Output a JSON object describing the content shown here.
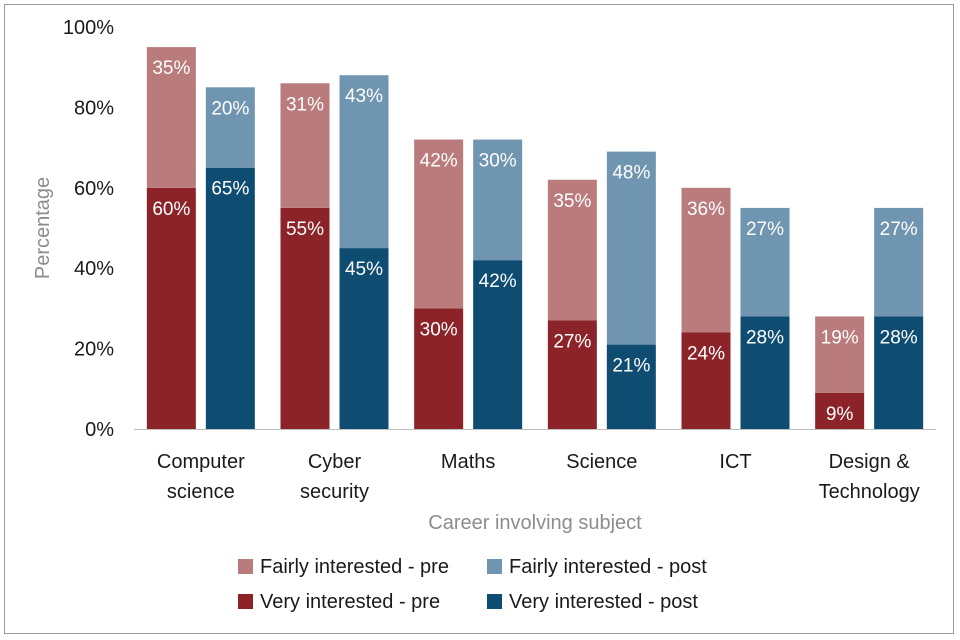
{
  "chart_data": {
    "type": "bar",
    "stacked": true,
    "grouped": true,
    "title": "",
    "xlabel": "Career involving subject",
    "ylabel": "Percentage",
    "ylim": [
      0,
      100
    ],
    "yticks": [
      "0%",
      "20%",
      "40%",
      "60%",
      "80%",
      "100%"
    ],
    "categories": [
      [
        "Computer",
        "science"
      ],
      [
        "Cyber",
        "security"
      ],
      [
        "Maths"
      ],
      [
        "Science"
      ],
      [
        "ICT"
      ],
      [
        "Design &",
        "Technology"
      ]
    ],
    "groups": [
      {
        "name": "pre",
        "series": [
          {
            "name": "Very interested - pre",
            "color": "#8b2328",
            "values": [
              60,
              55,
              30,
              27,
              24,
              9
            ]
          },
          {
            "name": "Fairly interested - pre",
            "color": "#ba7b7c",
            "values": [
              35,
              31,
              42,
              35,
              36,
              19
            ]
          }
        ]
      },
      {
        "name": "post",
        "series": [
          {
            "name": "Very interested - post",
            "color": "#0f4c72",
            "values": [
              65,
              45,
              42,
              21,
              28,
              28
            ]
          },
          {
            "name": "Fairly interested - post",
            "color": "#7095b0",
            "values": [
              20,
              43,
              30,
              48,
              27,
              27
            ]
          }
        ]
      }
    ],
    "legend": [
      {
        "name": "Fairly interested - pre",
        "color": "#ba7b7c"
      },
      {
        "name": "Fairly interested - post",
        "color": "#7095b0"
      },
      {
        "name": "Very interested - pre",
        "color": "#8b2328"
      },
      {
        "name": "Very interested - post",
        "color": "#0f4c72"
      }
    ],
    "legend_position": "bottom",
    "grid": false
  }
}
